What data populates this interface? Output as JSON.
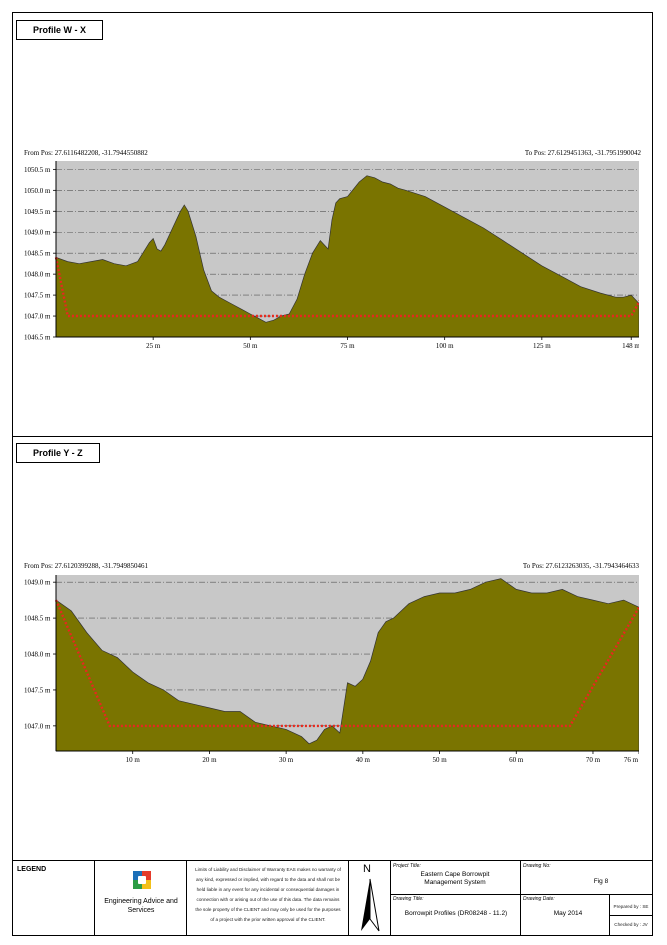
{
  "profiles": [
    {
      "title": "Profile W - X",
      "from_pos": "From Pos: 27.6116482208, -31.7944550882",
      "to_pos": "To Pos: 27.6129451363, -31.7951990042"
    },
    {
      "title": "Profile Y - Z",
      "from_pos": "From Pos: 27.6120399288, -31.7949850461",
      "to_pos": "To Pos: 27.6123263035, -31.7943464633"
    }
  ],
  "colors": {
    "terrain_fill": "#7a7400",
    "plot_bg": "#c8c8c8",
    "design_line": "#e8281e"
  },
  "chart_data": [
    {
      "type": "area",
      "xlim": [
        0,
        150
      ],
      "ylim": [
        1046.5,
        1050.7
      ],
      "grid": true,
      "y_ticks": [
        1046.5,
        1047.0,
        1047.5,
        1048.0,
        1048.5,
        1049.0,
        1049.5,
        1050.0,
        1050.5
      ],
      "y_tick_labels": [
        "1046.5 m",
        "1047.0 m",
        "1047.5 m",
        "1048.0 m",
        "1048.5 m",
        "1049.0 m",
        "1049.5 m",
        "1050.0 m",
        "1050.5 m"
      ],
      "x_ticks": [
        25,
        50,
        75,
        100,
        125,
        148
      ],
      "x_tick_labels": [
        "25 m",
        "50 m",
        "75 m",
        "100 m",
        "125 m",
        "148 m"
      ],
      "series": [
        {
          "x": [
            0,
            3,
            6,
            9,
            12,
            15,
            18,
            21,
            24,
            25,
            26,
            27,
            28,
            30,
            32,
            33,
            34,
            36,
            38,
            40,
            42,
            45,
            48,
            50,
            52,
            54,
            56,
            58,
            60,
            62,
            64,
            66,
            68,
            70,
            71,
            72,
            73,
            75,
            78,
            80,
            82,
            84,
            86,
            88,
            90,
            95,
            100,
            105,
            110,
            115,
            120,
            125,
            130,
            135,
            140,
            144,
            146,
            148,
            150
          ],
          "y": [
            1048.4,
            1048.3,
            1048.25,
            1048.3,
            1048.35,
            1048.25,
            1048.2,
            1048.3,
            1048.75,
            1048.85,
            1048.6,
            1048.55,
            1048.7,
            1049.1,
            1049.5,
            1049.65,
            1049.5,
            1048.9,
            1048.1,
            1047.6,
            1047.45,
            1047.3,
            1047.15,
            1047.05,
            1046.95,
            1046.85,
            1046.9,
            1047.0,
            1047.05,
            1047.4,
            1048.0,
            1048.5,
            1048.8,
            1048.6,
            1049.3,
            1049.7,
            1049.8,
            1049.85,
            1050.2,
            1050.35,
            1050.3,
            1050.2,
            1050.15,
            1050.05,
            1050.0,
            1049.85,
            1049.6,
            1049.35,
            1049.1,
            1048.8,
            1048.5,
            1048.2,
            1047.95,
            1047.7,
            1047.55,
            1047.45,
            1047.45,
            1047.5,
            1047.3
          ]
        },
        {
          "x": [
            0,
            3,
            148,
            151
          ],
          "y": [
            1048.4,
            1047.0,
            1047.0,
            1047.5
          ]
        }
      ]
    },
    {
      "type": "area",
      "xlim": [
        0,
        76
      ],
      "ylim": [
        1046.65,
        1049.1
      ],
      "grid": true,
      "y_ticks": [
        1047.0,
        1047.5,
        1048.0,
        1048.5,
        1049.0
      ],
      "y_tick_labels": [
        "1047.0 m",
        "1047.5 m",
        "1048.0 m",
        "1048.5 m",
        "1049.0 m"
      ],
      "x_ticks": [
        10,
        20,
        30,
        40,
        50,
        60,
        70,
        76
      ],
      "x_tick_labels": [
        "10 m",
        "20 m",
        "30 m",
        "40 m",
        "50 m",
        "60 m",
        "70 m",
        "76 m"
      ],
      "series": [
        {
          "x": [
            0,
            2,
            4,
            6,
            8,
            10,
            12,
            14,
            16,
            18,
            20,
            22,
            24,
            26,
            28,
            30,
            32,
            33,
            34,
            35,
            36,
            37,
            38,
            39,
            40,
            41,
            42,
            43,
            44,
            46,
            48,
            50,
            52,
            54,
            56,
            58,
            60,
            62,
            64,
            66,
            68,
            70,
            72,
            74,
            76
          ],
          "y": [
            1048.75,
            1048.6,
            1048.3,
            1048.05,
            1047.95,
            1047.75,
            1047.6,
            1047.5,
            1047.35,
            1047.3,
            1047.25,
            1047.2,
            1047.2,
            1047.05,
            1047.0,
            1046.95,
            1046.85,
            1046.75,
            1046.8,
            1046.95,
            1047.0,
            1046.9,
            1047.6,
            1047.55,
            1047.65,
            1047.9,
            1048.3,
            1048.45,
            1048.5,
            1048.7,
            1048.8,
            1048.85,
            1048.85,
            1048.9,
            1049.0,
            1049.05,
            1048.9,
            1048.85,
            1048.85,
            1048.9,
            1048.8,
            1048.75,
            1048.7,
            1048.75,
            1048.65
          ]
        },
        {
          "x": [
            0,
            7,
            38,
            67,
            76
          ],
          "y": [
            1048.75,
            1047.0,
            1047.0,
            1047.0,
            1048.65
          ]
        }
      ]
    }
  ],
  "legend": {
    "heading": "LEGEND",
    "company": "Engineering Advice and Services",
    "disclaimer": "Limits of Liability and Disclaimer of Warranty EAS makes no warranty of any kind, expressed or implied, with regard to the data and shall not be held liable in any event for any incidental or consequential damages in connection with or arising out of the use of this data. The data remains the sole property of the CLIENT and may only be used for the purposes of a project with the prior written approval of the CLIENT.",
    "north": "N",
    "project_title_label": "Project Title:",
    "project_title": "Eastern Cape Borrowpit Management System",
    "drawing_title_label": "Drawing Title:",
    "drawing_title": "Borrowpit Profiles (DR08248 - 11.2)",
    "drawing_no_label": "Drawing No:",
    "drawing_no": "Fig 8",
    "drawing_date_label": "Drawing Date:",
    "drawing_date": "May 2014",
    "prepared_by": "Prepared by : SE",
    "checked_by": "Checked by : JV"
  }
}
